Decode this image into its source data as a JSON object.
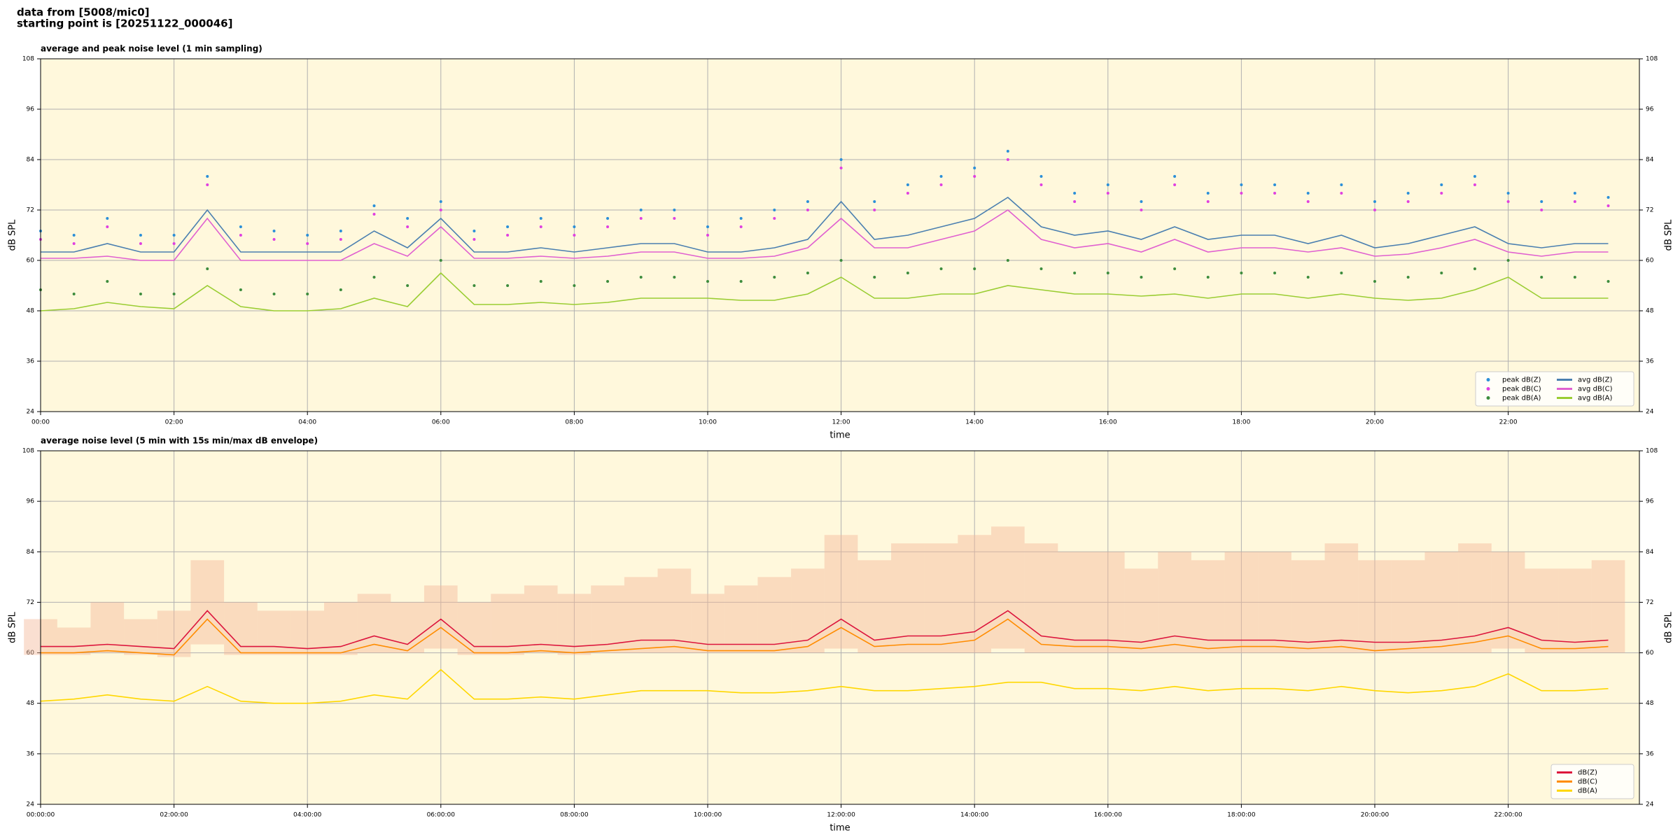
{
  "header": {
    "line1": "data from [5008/mic0]",
    "line2": "starting point is [20251122_000046]"
  },
  "chart_data": [
    {
      "type": "line",
      "title": "average and peak noise level (1 min sampling)",
      "xlabel": "time",
      "ylabel": "dB SPL",
      "xlim": [
        0,
        1438
      ],
      "ylim": [
        24,
        108
      ],
      "yticks": [
        24,
        36,
        48,
        60,
        72,
        84,
        96,
        108
      ],
      "xticks": [
        {
          "value": 0,
          "label": "00:00"
        },
        {
          "value": 120,
          "label": "02:00"
        },
        {
          "value": 240,
          "label": "04:00"
        },
        {
          "value": 360,
          "label": "06:00"
        },
        {
          "value": 480,
          "label": "08:00"
        },
        {
          "value": 600,
          "label": "10:00"
        },
        {
          "value": 720,
          "label": "12:00"
        },
        {
          "value": 840,
          "label": "14:00"
        },
        {
          "value": 960,
          "label": "16:00"
        },
        {
          "value": 1080,
          "label": "18:00"
        },
        {
          "value": 1200,
          "label": "20:00"
        },
        {
          "value": 1320,
          "label": "22:00"
        }
      ],
      "grid": true,
      "legend": "lower right",
      "legend_columns": 2,
      "background": "#fff8dc",
      "x": [
        0,
        30,
        60,
        90,
        120,
        150,
        180,
        210,
        240,
        270,
        300,
        330,
        360,
        390,
        420,
        450,
        480,
        510,
        540,
        570,
        600,
        630,
        660,
        690,
        720,
        750,
        780,
        810,
        840,
        870,
        900,
        930,
        960,
        990,
        1020,
        1050,
        1080,
        1110,
        1140,
        1170,
        1200,
        1230,
        1260,
        1290,
        1320,
        1350,
        1380,
        1410
      ],
      "series": [
        {
          "name": "peak dB(Z)",
          "style": "dots",
          "color": "#2b8fd8",
          "values": [
            67,
            66,
            70,
            66,
            66,
            80,
            68,
            67,
            66,
            67,
            73,
            70,
            74,
            67,
            68,
            70,
            68,
            70,
            72,
            72,
            68,
            70,
            72,
            74,
            84,
            74,
            78,
            80,
            82,
            86,
            80,
            76,
            78,
            74,
            80,
            76,
            78,
            78,
            76,
            78,
            74,
            76,
            78,
            80,
            76,
            74,
            76,
            75
          ]
        },
        {
          "name": "peak dB(C)",
          "style": "dots",
          "color": "#e040e0",
          "values": [
            65,
            64,
            68,
            64,
            64,
            78,
            66,
            65,
            64,
            65,
            71,
            68,
            72,
            65,
            66,
            68,
            66,
            68,
            70,
            70,
            66,
            68,
            70,
            72,
            82,
            72,
            76,
            78,
            80,
            84,
            78,
            74,
            76,
            72,
            78,
            74,
            76,
            76,
            74,
            76,
            72,
            74,
            76,
            78,
            74,
            72,
            74,
            73
          ]
        },
        {
          "name": "peak dB(A)",
          "style": "dots",
          "color": "#3d8c3d",
          "values": [
            53,
            52,
            55,
            52,
            52,
            58,
            53,
            52,
            52,
            53,
            56,
            54,
            60,
            54,
            54,
            55,
            54,
            55,
            56,
            56,
            55,
            55,
            56,
            57,
            60,
            56,
            57,
            58,
            58,
            60,
            58,
            57,
            57,
            56,
            58,
            56,
            57,
            57,
            56,
            57,
            55,
            56,
            57,
            58,
            60,
            56,
            56,
            55
          ]
        },
        {
          "name": "avg dB(Z)",
          "style": "line",
          "color": "#4a7fb0",
          "values": [
            62,
            62,
            64,
            62,
            62,
            72,
            62,
            62,
            62,
            62,
            67,
            63,
            70,
            62,
            62,
            63,
            62,
            63,
            64,
            64,
            62,
            62,
            63,
            65,
            74,
            65,
            66,
            68,
            70,
            75,
            68,
            66,
            67,
            65,
            68,
            65,
            66,
            66,
            64,
            66,
            63,
            64,
            66,
            68,
            64,
            63,
            64,
            64
          ]
        },
        {
          "name": "avg dB(C)",
          "style": "line",
          "color": "#e060d0",
          "values": [
            60.5,
            60.5,
            61,
            60,
            60,
            70,
            60,
            60,
            60,
            60,
            64,
            61,
            68,
            60.5,
            60.5,
            61,
            60.5,
            61,
            62,
            62,
            60.5,
            60.5,
            61,
            63,
            70,
            63,
            63,
            65,
            67,
            72,
            65,
            63,
            64,
            62,
            65,
            62,
            63,
            63,
            62,
            63,
            61,
            61.5,
            63,
            65,
            62,
            61,
            62,
            62
          ]
        },
        {
          "name": "avg dB(A)",
          "style": "line",
          "color": "#9acd32",
          "values": [
            48,
            48.5,
            50,
            49,
            48.5,
            54,
            49,
            48,
            48,
            48.5,
            51,
            49,
            57,
            49.5,
            49.5,
            50,
            49.5,
            50,
            51,
            51,
            51,
            50.5,
            50.5,
            52,
            56,
            51,
            51,
            52,
            52,
            54,
            53,
            52,
            52,
            51.5,
            52,
            51,
            52,
            52,
            51,
            52,
            51,
            50.5,
            51,
            53,
            56,
            51,
            51,
            51
          ]
        }
      ]
    },
    {
      "type": "line",
      "title": "average noise level (5 min with 15s min/max dB envelope)",
      "xlabel": "time",
      "ylabel": "dB SPL",
      "xlim": [
        0,
        1438
      ],
      "ylim": [
        24,
        108
      ],
      "yticks": [
        24,
        36,
        48,
        60,
        72,
        84,
        96,
        108
      ],
      "xticks": [
        {
          "value": 0,
          "label": "00:00:00"
        },
        {
          "value": 120,
          "label": "02:00:00"
        },
        {
          "value": 240,
          "label": "04:00:00"
        },
        {
          "value": 360,
          "label": "06:00:00"
        },
        {
          "value": 480,
          "label": "08:00:00"
        },
        {
          "value": 600,
          "label": "10:00:00"
        },
        {
          "value": 720,
          "label": "12:00:00"
        },
        {
          "value": 840,
          "label": "14:00:00"
        },
        {
          "value": 960,
          "label": "16:00:00"
        },
        {
          "value": 1080,
          "label": "18:00:00"
        },
        {
          "value": 1200,
          "label": "20:00:00"
        },
        {
          "value": 1320,
          "label": "22:00:00"
        }
      ],
      "grid": true,
      "legend": "lower right",
      "legend_columns": 1,
      "background": "#fff8dc",
      "x": [
        0,
        30,
        60,
        90,
        120,
        150,
        180,
        210,
        240,
        270,
        300,
        330,
        360,
        390,
        420,
        450,
        480,
        510,
        540,
        570,
        600,
        630,
        660,
        690,
        720,
        750,
        780,
        810,
        840,
        870,
        900,
        930,
        960,
        990,
        1020,
        1050,
        1080,
        1110,
        1140,
        1170,
        1200,
        1230,
        1260,
        1290,
        1320,
        1350,
        1380,
        1410
      ],
      "envelope": {
        "color": "#f4b79a",
        "min": [
          59.5,
          59.5,
          60,
          59.5,
          59,
          62,
          59.5,
          59.5,
          59.5,
          59.5,
          60,
          60,
          61,
          59.5,
          59.5,
          60,
          59.5,
          60,
          60,
          60,
          60,
          60,
          60,
          60,
          61,
          60,
          60,
          60,
          60,
          61,
          60,
          60,
          60,
          60,
          60,
          60,
          60,
          60,
          60,
          60,
          60,
          60,
          60,
          60,
          61,
          60,
          60,
          60
        ],
        "max": [
          68,
          66,
          72,
          68,
          70,
          82,
          72,
          70,
          70,
          72,
          74,
          72,
          76,
          72,
          74,
          76,
          74,
          76,
          78,
          80,
          74,
          76,
          78,
          80,
          88,
          82,
          86,
          86,
          88,
          90,
          86,
          84,
          84,
          80,
          84,
          82,
          84,
          84,
          82,
          86,
          82,
          82,
          84,
          86,
          84,
          80,
          80,
          82
        ]
      },
      "series": [
        {
          "name": "dB(Z)",
          "style": "line",
          "color": "#dc143c",
          "values": [
            61.5,
            61.5,
            62,
            61.5,
            61,
            70,
            61.5,
            61.5,
            61,
            61.5,
            64,
            62,
            68,
            61.5,
            61.5,
            62,
            61.5,
            62,
            63,
            63,
            62,
            62,
            62,
            63,
            68,
            63,
            64,
            64,
            65,
            70,
            64,
            63,
            63,
            62.5,
            64,
            63,
            63,
            63,
            62.5,
            63,
            62.5,
            62.5,
            63,
            64,
            66,
            63,
            62.5,
            63
          ]
        },
        {
          "name": "dB(C)",
          "style": "line",
          "color": "#ff8c00",
          "values": [
            60,
            60,
            60.5,
            60,
            59.5,
            68,
            60,
            60,
            60,
            60,
            62,
            60.5,
            66,
            60,
            60,
            60.5,
            60,
            60.5,
            61,
            61.5,
            60.5,
            60.5,
            60.5,
            61.5,
            66,
            61.5,
            62,
            62,
            63,
            68,
            62,
            61.5,
            61.5,
            61,
            62,
            61,
            61.5,
            61.5,
            61,
            61.5,
            60.5,
            61,
            61.5,
            62.5,
            64,
            61,
            61,
            61.5
          ]
        },
        {
          "name": "dB(A)",
          "style": "line",
          "color": "#ffd700",
          "values": [
            48.5,
            49,
            50,
            49,
            48.5,
            52,
            48.5,
            48,
            48,
            48.5,
            50,
            49,
            56,
            49,
            49,
            49.5,
            49,
            50,
            51,
            51,
            51,
            50.5,
            50.5,
            51,
            52,
            51,
            51,
            51.5,
            52,
            53,
            53,
            51.5,
            51.5,
            51,
            52,
            51,
            51.5,
            51.5,
            51,
            52,
            51,
            50.5,
            51,
            52,
            55,
            51,
            51,
            51.5
          ]
        }
      ]
    }
  ]
}
